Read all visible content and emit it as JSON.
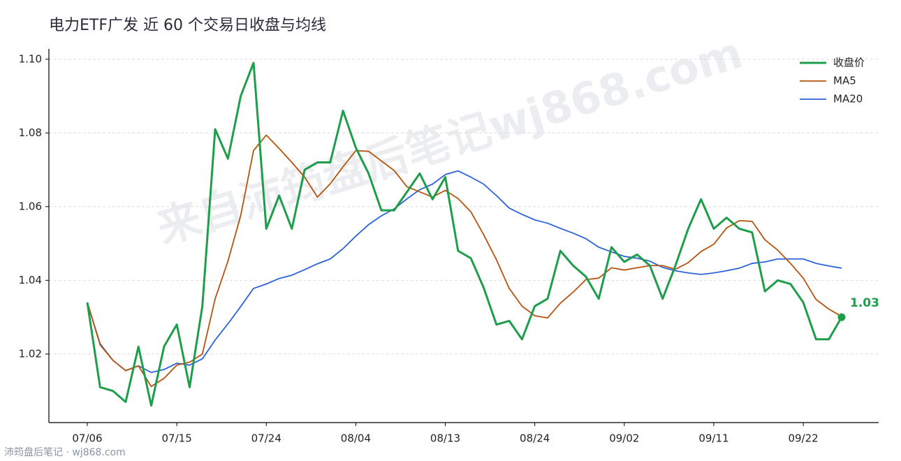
{
  "chart_data": {
    "type": "line",
    "title": "电力ETF广发 近 60 个交易日收盘与均线",
    "watermark": "来自沛筠盘后笔记wj868.com",
    "footer": "沛筠盘后笔记 · wj868.com",
    "last_label": "1.03",
    "categories": [
      "07/06",
      null,
      null,
      null,
      null,
      null,
      null,
      "07/15",
      null,
      null,
      null,
      null,
      null,
      null,
      "07/24",
      null,
      null,
      null,
      null,
      null,
      null,
      "08/04",
      null,
      null,
      null,
      null,
      null,
      null,
      "08/13",
      null,
      null,
      null,
      null,
      null,
      null,
      "08/24",
      null,
      null,
      null,
      null,
      null,
      null,
      "09/02",
      null,
      null,
      null,
      null,
      null,
      null,
      "09/11",
      null,
      null,
      null,
      null,
      null,
      null,
      "09/22",
      null,
      null,
      null
    ],
    "series": [
      {
        "name": "收盘价",
        "color": "#1e9e4a",
        "width": 3,
        "values": [
          1.034,
          1.011,
          1.01,
          1.007,
          1.022,
          1.006,
          1.022,
          1.028,
          1.011,
          1.033,
          1.081,
          1.073,
          1.09,
          1.099,
          1.054,
          1.063,
          1.054,
          1.07,
          1.072,
          1.072,
          1.086,
          1.076,
          1.069,
          1.059,
          1.059,
          1.064,
          1.069,
          1.062,
          1.068,
          1.048,
          1.046,
          1.038,
          1.028,
          1.029,
          1.024,
          1.033,
          1.035,
          1.048,
          1.044,
          1.041,
          1.035,
          1.049,
          1.045,
          1.047,
          1.044,
          1.035,
          1.044,
          1.054,
          1.062,
          1.054,
          1.057,
          1.054,
          1.053,
          1.037,
          1.04,
          1.039,
          1.034,
          1.024,
          1.024,
          1.03
        ]
      },
      {
        "name": "MA5",
        "color": "#b5540f",
        "width": 1.8,
        "values": [
          1.034,
          1.0225,
          1.0183,
          1.0155,
          1.0168,
          1.0112,
          1.0134,
          1.017,
          1.0178,
          1.02,
          1.035,
          1.0452,
          1.0576,
          1.0752,
          1.0794,
          1.0758,
          1.072,
          1.068,
          1.0626,
          1.0662,
          1.0708,
          1.0752,
          1.075,
          1.0724,
          1.0698,
          1.0654,
          1.064,
          1.0626,
          1.0644,
          1.0622,
          1.0586,
          1.0524,
          1.0456,
          1.0378,
          1.033,
          1.0304,
          1.0298,
          1.0338,
          1.0368,
          1.0402,
          1.0406,
          1.0434,
          1.0428,
          1.0434,
          1.044,
          1.044,
          1.043,
          1.0448,
          1.0478,
          1.0498,
          1.0542,
          1.0562,
          1.056,
          1.051,
          1.0482,
          1.0446,
          1.0406,
          1.0348,
          1.0322,
          1.0302
        ]
      },
      {
        "name": "MA20",
        "color": "#2d63d9",
        "width": 1.8,
        "values": [
          1.034,
          1.0228,
          1.0183,
          1.0155,
          1.0168,
          1.015,
          1.0158,
          1.0175,
          1.017,
          1.0187,
          1.0238,
          1.0282,
          1.0329,
          1.0378,
          1.039,
          1.0405,
          1.0414,
          1.0429,
          1.0445,
          1.0458,
          1.0486,
          1.052,
          1.0551,
          1.0575,
          1.0594,
          1.0621,
          1.0646,
          1.0661,
          1.0687,
          1.0697,
          1.068,
          1.0661,
          1.063,
          1.0596,
          1.0579,
          1.0564,
          1.0555,
          1.0541,
          1.0528,
          1.0513,
          1.049,
          1.0477,
          1.0465,
          1.046,
          1.0452,
          1.0435,
          1.0426,
          1.042,
          1.0416,
          1.042,
          1.0426,
          1.0433,
          1.0446,
          1.045,
          1.0458,
          1.0458,
          1.0458,
          1.0446,
          1.0439,
          1.0433
        ]
      }
    ],
    "ylim": [
      1.0014,
      1.1028
    ],
    "yticks": [
      1.02,
      1.04,
      1.06,
      1.08,
      {
        "value": 1.1,
        "label": "1.10"
      }
    ],
    "grid": true,
    "legend": "upper-right"
  }
}
